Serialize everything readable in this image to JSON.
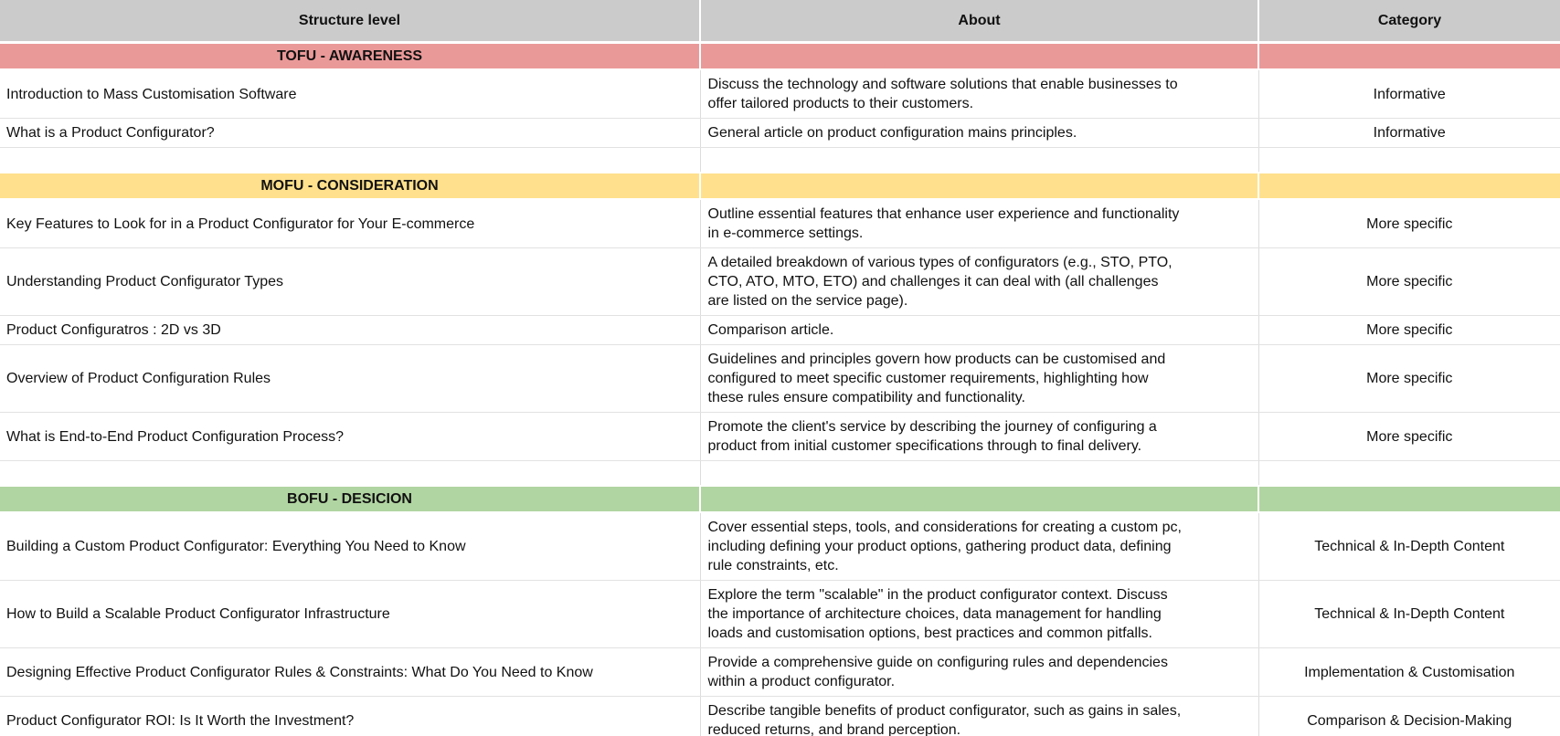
{
  "colors": {
    "header_bg": "#cbcbcb",
    "tofu_bg": "#ea9999",
    "mofu_bg": "#ffe08c",
    "bofu_bg": "#b1d5a2",
    "grid": "#e2e2e2"
  },
  "table": {
    "columns": [
      "Structure level",
      "About",
      "Category"
    ],
    "rows": [
      {
        "type": "section",
        "bg": "tofu_bg",
        "label": "TOFU - AWARENESS"
      },
      {
        "type": "item",
        "structure": "Introduction to Mass Customisation Software",
        "about": "Discuss the technology and software solutions that enable businesses to\noffer tailored products to their customers.",
        "category": "Informative"
      },
      {
        "type": "item",
        "structure": "What is a Product Configurator?",
        "about": "General article on product configuration mains principles.",
        "category": "Informative"
      },
      {
        "type": "empty"
      },
      {
        "type": "section",
        "bg": "mofu_bg",
        "label": "MOFU - CONSIDERATION"
      },
      {
        "type": "item",
        "structure": "Key Features to Look for in a Product Configurator for Your E-commerce",
        "about": "Outline essential features that enhance user experience and functionality\nin e-commerce settings.",
        "category": "More specific"
      },
      {
        "type": "item",
        "structure": "Understanding Product Configurator Types",
        "about": "A detailed breakdown of various types of configurators (e.g., STO, PTO,\nCTO, ATO, MTO, ETO) and challenges it can deal with (all challenges\nare listed on the service page).",
        "category": "More specific"
      },
      {
        "type": "item",
        "structure": "Product Configuratros : 2D vs 3D",
        "about": "Comparison article.",
        "category": "More specific"
      },
      {
        "type": "item",
        "structure": "Overview of Product Configuration Rules",
        "about": "Guidelines and principles govern how products can be customised and\nconfigured to meet specific customer requirements, highlighting how\nthese rules ensure compatibility and functionality.",
        "category": "More specific"
      },
      {
        "type": "item",
        "structure": "What is End-to-End Product Configuration Process?",
        "about": "Promote the client's service by describing the journey of configuring a\nproduct from initial customer specifications through to final delivery.",
        "category": "More specific"
      },
      {
        "type": "empty"
      },
      {
        "type": "section",
        "bg": "bofu_bg",
        "label": "BOFU - DESICION"
      },
      {
        "type": "item",
        "structure": "Building a Custom Product Configurator: Everything You Need to Know",
        "about": "Cover essential steps, tools, and considerations for creating a custom pc,\nincluding defining your product options, gathering product data, defining\nrule constraints, etc.",
        "category": "Technical & In-Depth Content"
      },
      {
        "type": "item",
        "structure": "How to Build a Scalable Product Configurator Infrastructure",
        "about": "Explore the term \"scalable\" in the product configurator context. Discuss\nthe importance of architecture choices, data management for handling\nloads and customisation options, best practices and common pitfalls.",
        "category": "Technical & In-Depth Content"
      },
      {
        "type": "item",
        "structure": "Designing Effective Product Configurator Rules & Constraints: What Do You Need to Know",
        "about": "Provide a comprehensive guide on configuring rules and dependencies\nwithin a product configurator.",
        "category": "Implementation & Customisation"
      },
      {
        "type": "item",
        "structure": "Product Configurator ROI: Is It Worth the Investment?",
        "about": "Describe tangible benefits of product configurator, such as gains in sales,\nreduced returns, and brand perception.",
        "category": "Comparison & Decision-Making"
      }
    ]
  }
}
